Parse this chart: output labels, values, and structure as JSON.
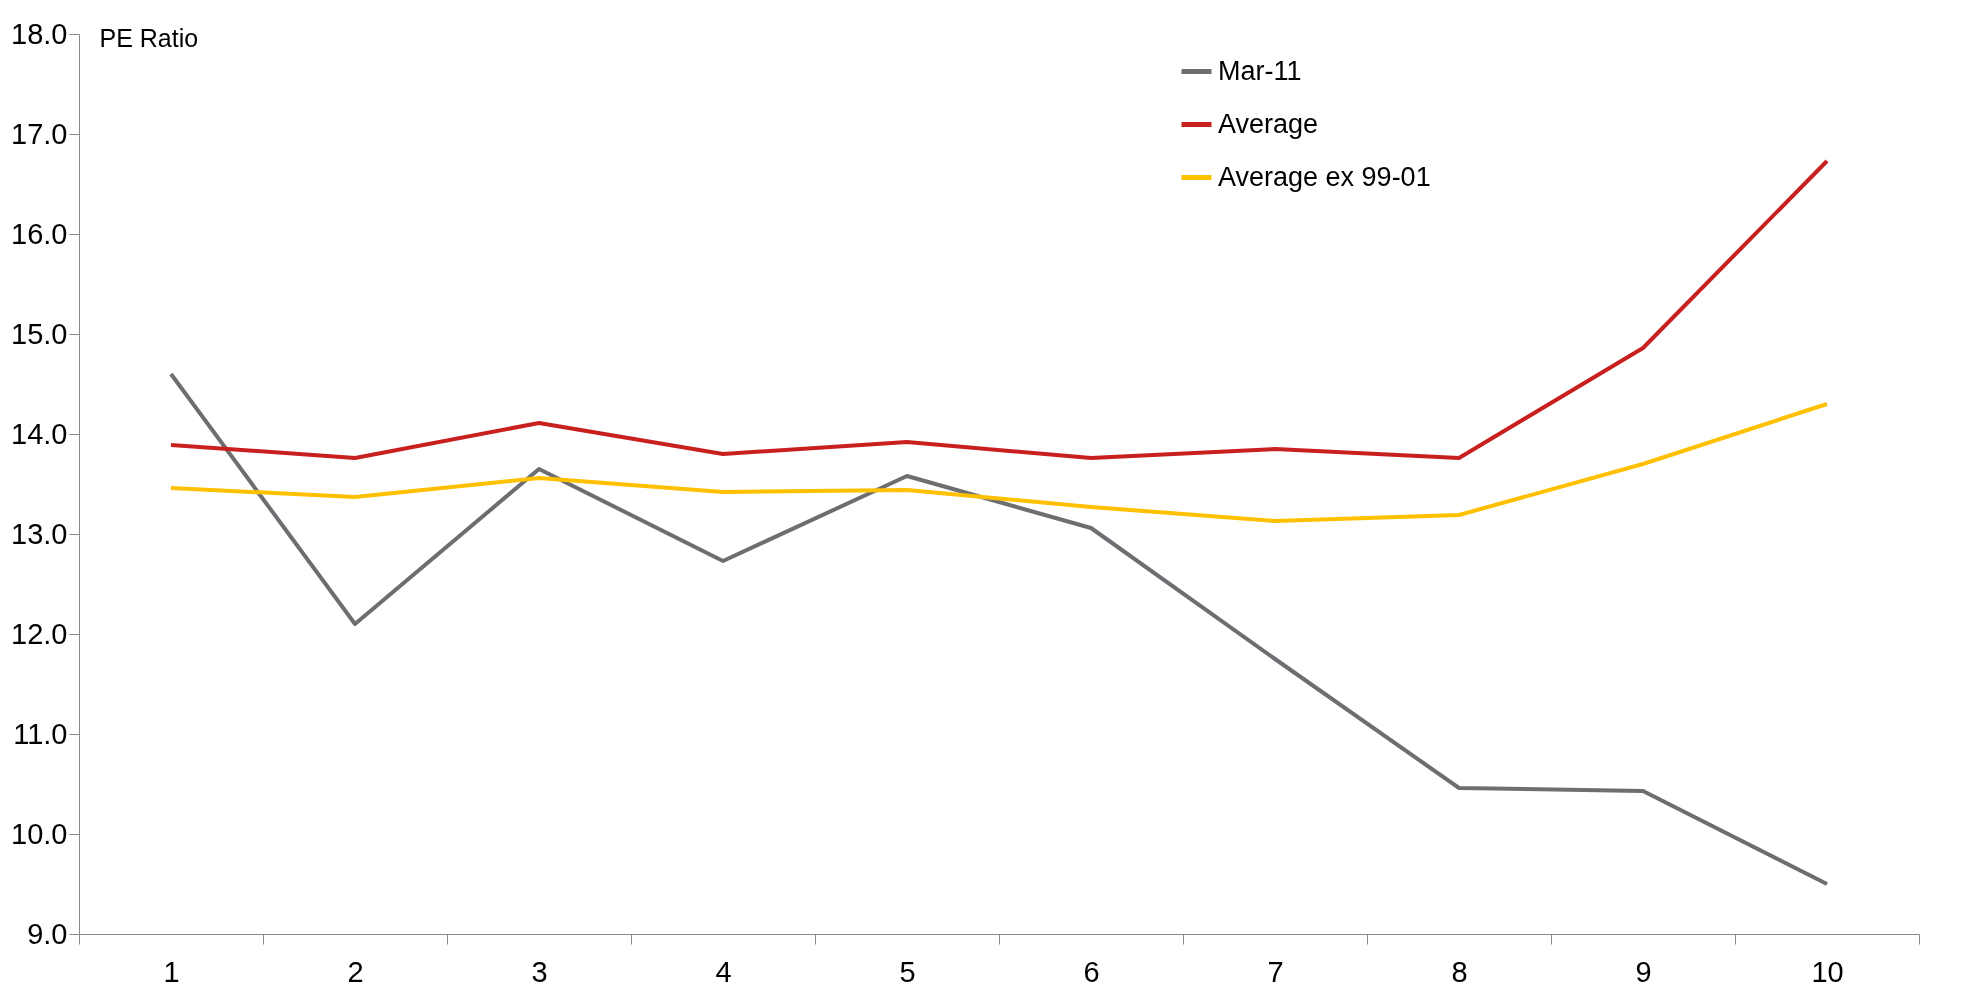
{
  "chart_data": {
    "type": "line",
    "ylabel": "PE Ratio",
    "categories": [
      "1",
      "2",
      "3",
      "4",
      "5",
      "6",
      "7",
      "8",
      "9",
      "10"
    ],
    "series": [
      {
        "name": "Mar-11",
        "color": "#6d6e71",
        "values": [
          14.6,
          12.1,
          13.65,
          12.73,
          13.58,
          13.06,
          11.75,
          10.46,
          10.43,
          9.5
        ]
      },
      {
        "name": "Average",
        "color": "#c8201e",
        "values": [
          13.89,
          13.76,
          14.11,
          13.8,
          13.92,
          13.76,
          13.85,
          13.76,
          14.86,
          16.73
        ]
      },
      {
        "name": "Average ex 99-01",
        "color": "#ffc000",
        "values": [
          13.46,
          13.37,
          13.56,
          13.42,
          13.44,
          13.27,
          13.13,
          13.19,
          13.7,
          14.3
        ]
      }
    ],
    "ylim": [
      9,
      18
    ],
    "yticks": [
      {
        "value": 9,
        "label": "9.0"
      },
      {
        "value": 10,
        "label": "10.0"
      },
      {
        "value": 11,
        "label": "11.0"
      },
      {
        "value": 12,
        "label": "12.0"
      },
      {
        "value": 13,
        "label": "13.0"
      },
      {
        "value": 14,
        "label": "14.0"
      },
      {
        "value": 15,
        "label": "15.0"
      },
      {
        "value": 16,
        "label": "16.0"
      },
      {
        "value": 17,
        "label": "17.0"
      },
      {
        "value": 18,
        "label": "18.0"
      }
    ],
    "grid": false,
    "legend": "top right",
    "marker": "none",
    "line_style": "solid"
  }
}
